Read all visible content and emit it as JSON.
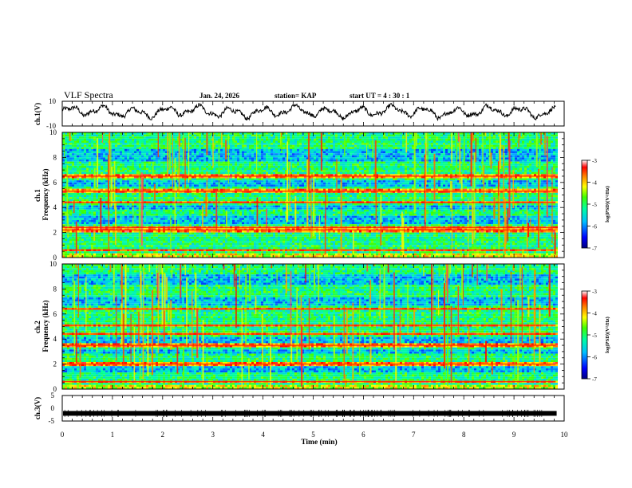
{
  "header": {
    "title": "VLF Spectra",
    "date": "Jan. 24, 2026",
    "station": "station= KAP",
    "start": "start  UT  =   4  : 30 : 1"
  },
  "colors": {
    "spectrum_scale": [
      "#0000b4",
      "#0050ff",
      "#00c8ff",
      "#00ffb4",
      "#32ff00",
      "#c8ff00",
      "#ffff00",
      "#ffaa00",
      "#ff3200",
      "#ff0000",
      "#ffffff"
    ]
  },
  "chart_data": [
    {
      "name": "ch1-waveform",
      "type": "line",
      "ylabel": "ch.1(V)",
      "ylim": [
        -10,
        10
      ],
      "y_ticks": [
        "10",
        "-10"
      ],
      "xlim": [
        0,
        10
      ],
      "trace_end_min": 9.83,
      "note": "oscillating voltage trace spanning roughly -6 to +8 V"
    },
    {
      "name": "ch1-spectrogram",
      "type": "heatmap",
      "ylabel": "ch.1\nFrequency  (kHz)",
      "ylim": [
        0,
        10
      ],
      "y_ticks": [
        "0",
        "2",
        "4",
        "6",
        "8",
        "10"
      ],
      "xlim": [
        0,
        10
      ],
      "data_end_min": 9.83,
      "colorbar": {
        "label": "log(PSD)(V²/Hz)",
        "range": [
          -7,
          -3
        ],
        "ticks": [
          "-3",
          "-4",
          "-5",
          "-6",
          "-7"
        ]
      },
      "emission_lines_khz": [
        0.6,
        2.2,
        2.4,
        4.4,
        5.3,
        6.5
      ],
      "quiet_bands_khz": [
        [
          2.6,
          3.4
        ],
        [
          3.8,
          4.2
        ],
        [
          5.6,
          6.2
        ],
        [
          7.6,
          8.6
        ]
      ]
    },
    {
      "name": "ch2-spectrogram",
      "type": "heatmap",
      "ylabel": "ch.2\nFrequency  (kHz)",
      "ylim": [
        0,
        10
      ],
      "y_ticks": [
        "0",
        "2",
        "4",
        "6",
        "8",
        "10"
      ],
      "xlim": [
        0,
        10
      ],
      "data_end_min": 9.83,
      "colorbar": {
        "label": "log(PSD)(V²/Hz)",
        "range": [
          -7,
          -3
        ],
        "ticks": [
          "-3",
          "-4",
          "-5",
          "-6",
          "-7"
        ]
      },
      "emission_lines_khz": [
        0.6,
        2.0,
        3.5,
        4.4,
        5.1,
        6.4
      ],
      "quiet_bands_khz": [
        [
          1.4,
          1.9
        ],
        [
          2.8,
          3.2
        ],
        [
          3.7,
          4.1
        ],
        [
          6.6,
          7.4
        ],
        [
          8.4,
          9.2
        ]
      ]
    },
    {
      "name": "ch3-waveform",
      "type": "line",
      "ylabel": "ch.3(V)",
      "ylim": [
        -5,
        5
      ],
      "y_ticks": [
        "5",
        "0",
        "-5"
      ],
      "xlim": [
        0,
        10
      ],
      "trace_level_v": -2,
      "note": "dense near-constant trace around -2 V"
    },
    {
      "name": "time-axis",
      "type": "axis",
      "xlabel": "Time  (min)",
      "xlim": [
        0,
        10
      ],
      "x_ticks": [
        "0",
        "1",
        "2",
        "3",
        "4",
        "5",
        "6",
        "7",
        "8",
        "9",
        "10"
      ]
    }
  ]
}
